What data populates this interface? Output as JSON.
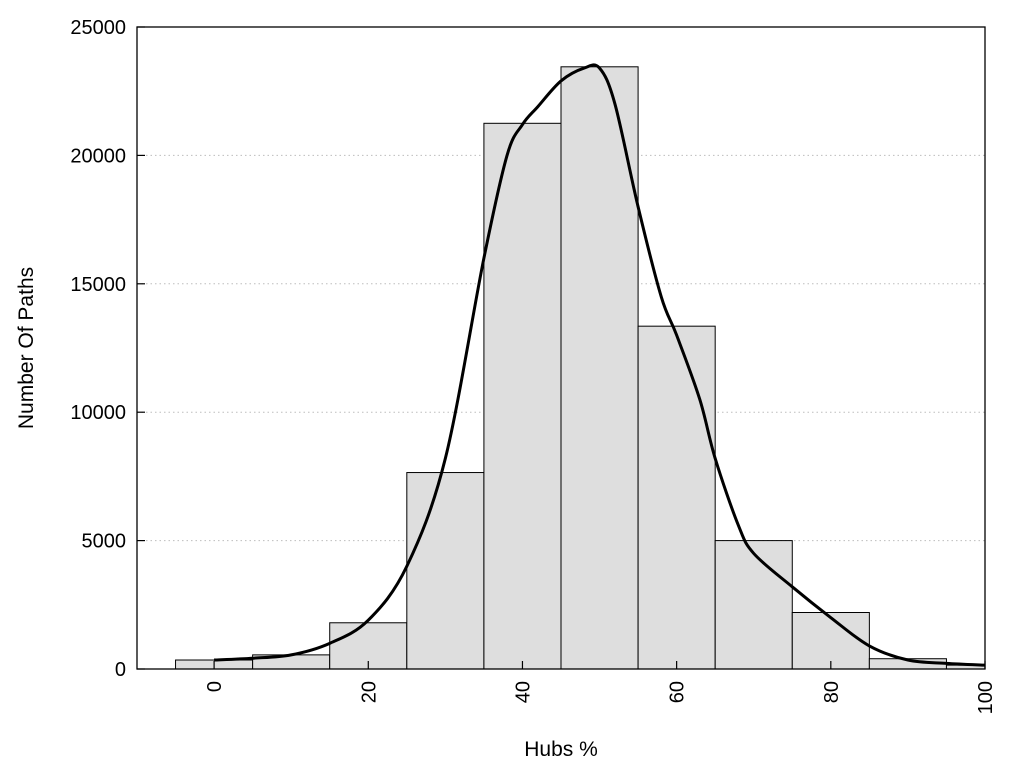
{
  "chart_data": {
    "type": "bar",
    "title": "",
    "xlabel": "Hubs %",
    "ylabel": "Number Of Paths",
    "xlim": [
      -10,
      100
    ],
    "ylim": [
      0,
      25000
    ],
    "x_ticks": [
      0,
      20,
      40,
      60,
      80,
      100
    ],
    "y_ticks": [
      0,
      5000,
      10000,
      15000,
      20000,
      25000
    ],
    "grid": "horizontal dotted",
    "bar_color": "#dedede",
    "bar_edge_color": "#000000",
    "bins": [
      {
        "x0": -5,
        "x1": 5,
        "value": 350
      },
      {
        "x0": 5,
        "x1": 15,
        "value": 550
      },
      {
        "x0": 15,
        "x1": 25,
        "value": 1800
      },
      {
        "x0": 25,
        "x1": 35,
        "value": 7650
      },
      {
        "x0": 35,
        "x1": 45,
        "value": 21250
      },
      {
        "x0": 45,
        "x1": 55,
        "value": 23450
      },
      {
        "x0": 55,
        "x1": 65,
        "value": 13350
      },
      {
        "x0": 65,
        "x1": 75,
        "value": 5000
      },
      {
        "x0": 75,
        "x1": 85,
        "value": 2200
      },
      {
        "x0": 85,
        "x1": 95,
        "value": 400
      },
      {
        "x0": 95,
        "x1": 105,
        "value": 150
      }
    ],
    "density_curve": {
      "x": [
        0,
        5,
        10,
        15,
        20,
        25,
        30,
        35,
        38,
        40,
        42,
        45,
        48,
        50,
        52,
        55,
        58,
        60,
        63,
        65,
        68,
        70,
        75,
        80,
        85,
        90,
        95,
        100
      ],
      "y": [
        350,
        420,
        550,
        1000,
        1900,
        4000,
        8200,
        16000,
        20000,
        21200,
        21900,
        22900,
        23400,
        23400,
        22000,
        18000,
        14500,
        13000,
        10500,
        8200,
        5600,
        4500,
        3200,
        2000,
        900,
        350,
        220,
        150
      ]
    }
  }
}
